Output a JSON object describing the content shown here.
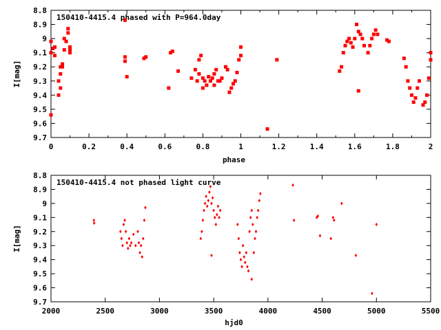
{
  "chart_data": [
    {
      "type": "scatter",
      "title": "150410-4415.4 phased with P=964.0day",
      "xlabel": "phase",
      "ylabel": "I[mag]",
      "xlim": [
        0,
        2
      ],
      "ylim": [
        8.8,
        9.7
      ],
      "y_inverted": true,
      "x_ticks": [
        "0",
        "0.2",
        "0.4",
        "0.6",
        "0.8",
        "1",
        "1.2",
        "1.4",
        "1.6",
        "1.8",
        "2"
      ],
      "y_ticks": [
        "8.8",
        "8.9",
        "9",
        "9.1",
        "9.2",
        "9.3",
        "9.4",
        "9.5",
        "9.6",
        "9.7"
      ],
      "marker_color": "#ff0000",
      "x": [
        0.0,
        0.0,
        0.0,
        0.01,
        0.02,
        0.02,
        0.04,
        0.04,
        0.05,
        0.05,
        0.05,
        0.06,
        0.06,
        0.07,
        0.07,
        0.08,
        0.09,
        0.09,
        0.1,
        0.1,
        0.1,
        0.39,
        0.39,
        0.39,
        0.4,
        0.49,
        0.5,
        0.62,
        0.63,
        0.64,
        0.67,
        0.74,
        0.76,
        0.77,
        0.78,
        0.78,
        0.79,
        0.8,
        0.8,
        0.81,
        0.82,
        0.83,
        0.84,
        0.85,
        0.86,
        0.86,
        0.87,
        0.88,
        0.89,
        0.9,
        0.92,
        0.93,
        0.94,
        0.95,
        0.96,
        0.97,
        0.98,
        0.99,
        1.0,
        1.0,
        1.14,
        1.19,
        1.52,
        1.53,
        1.54,
        1.55,
        1.56,
        1.57,
        1.58,
        1.59,
        1.6,
        1.61,
        1.62,
        1.62,
        1.63,
        1.64,
        1.65,
        1.67,
        1.68,
        1.69,
        1.7,
        1.71,
        1.72,
        1.77,
        1.78,
        1.86,
        1.87,
        1.88,
        1.89,
        1.9,
        1.91,
        1.92,
        1.93,
        1.94,
        1.96,
        1.97,
        1.98,
        1.99,
        2.0,
        2.0
      ],
      "y": [
        9.02,
        9.1,
        9.54,
        9.07,
        9.12,
        9.06,
        9.3,
        9.4,
        9.2,
        9.25,
        9.35,
        9.18,
        9.2,
        9.0,
        9.08,
        9.02,
        8.96,
        8.93,
        9.08,
        9.1,
        9.06,
        8.87,
        9.13,
        9.16,
        9.27,
        9.14,
        9.13,
        9.35,
        9.1,
        9.09,
        9.23,
        9.28,
        9.22,
        9.3,
        9.25,
        9.15,
        9.12,
        9.28,
        9.35,
        9.3,
        9.33,
        9.27,
        9.3,
        9.28,
        9.25,
        9.33,
        9.22,
        9.3,
        9.3,
        9.28,
        9.2,
        9.22,
        9.38,
        9.35,
        9.32,
        9.3,
        9.24,
        9.15,
        9.12,
        9.06,
        9.64,
        9.15,
        9.23,
        9.2,
        9.1,
        9.05,
        9.02,
        9.0,
        9.03,
        9.06,
        9.0,
        8.9,
        8.95,
        9.37,
        8.97,
        9.0,
        9.05,
        9.1,
        9.05,
        9.0,
        8.97,
        8.94,
        8.97,
        9.01,
        9.02,
        9.14,
        9.2,
        9.3,
        9.35,
        9.4,
        9.45,
        9.42,
        9.35,
        9.3,
        9.47,
        9.45,
        9.4,
        9.28,
        9.15,
        9.1
      ]
    },
    {
      "type": "scatter",
      "title": "150410-4415.4 not phased light curve",
      "xlabel": "hjd0",
      "ylabel": "I[mag]",
      "xlim": [
        2000,
        5500
      ],
      "ylim": [
        8.8,
        9.7
      ],
      "y_inverted": true,
      "x_ticks": [
        "2000",
        "2500",
        "3000",
        "3500",
        "4000",
        "4500",
        "5000",
        "5500"
      ],
      "y_ticks": [
        "8.8",
        "8.9",
        "9",
        "9.1",
        "9.2",
        "9.3",
        "9.4",
        "9.5",
        "9.6",
        "9.7"
      ],
      "marker_color": "#ff0000",
      "x": [
        2395,
        2398,
        2640,
        2650,
        2660,
        2670,
        2680,
        2690,
        2700,
        2710,
        2720,
        2730,
        2740,
        2760,
        2780,
        2800,
        2810,
        2820,
        2830,
        2840,
        2850,
        2860,
        2870,
        3380,
        3390,
        3400,
        3410,
        3420,
        3430,
        3440,
        3450,
        3460,
        3470,
        3480,
        3490,
        3500,
        3510,
        3520,
        3530,
        3540,
        3550,
        3560,
        3720,
        3730,
        3740,
        3750,
        3760,
        3770,
        3780,
        3790,
        3800,
        3810,
        3820,
        3830,
        3840,
        3850,
        3860,
        3870,
        3880,
        3890,
        3900,
        3910,
        3920,
        3930,
        4230,
        4240,
        4450,
        4460,
        4480,
        4580,
        4600,
        4610,
        4680,
        4810,
        4960,
        5000,
        3480,
        3850
      ],
      "y": [
        9.12,
        9.14,
        9.2,
        9.25,
        9.3,
        9.15,
        9.12,
        9.2,
        9.28,
        9.32,
        9.25,
        9.3,
        9.28,
        9.22,
        9.3,
        9.2,
        9.28,
        9.35,
        9.3,
        9.38,
        9.25,
        9.12,
        9.03,
        9.25,
        9.2,
        9.12,
        9.05,
        9.0,
        8.95,
        9.02,
        8.98,
        8.92,
        8.88,
        9.0,
        8.96,
        9.05,
        9.1,
        9.15,
        9.08,
        9.02,
        9.1,
        9.05,
        9.15,
        9.25,
        9.35,
        9.4,
        9.45,
        9.3,
        9.38,
        9.42,
        9.35,
        9.45,
        9.48,
        9.2,
        9.1,
        9.05,
        9.15,
        9.35,
        9.25,
        9.2,
        9.1,
        9.05,
        8.98,
        8.93,
        8.87,
        9.12,
        9.1,
        9.09,
        9.23,
        9.25,
        9.1,
        9.12,
        9.0,
        9.37,
        9.64,
        9.15,
        9.37,
        9.54
      ]
    }
  ]
}
